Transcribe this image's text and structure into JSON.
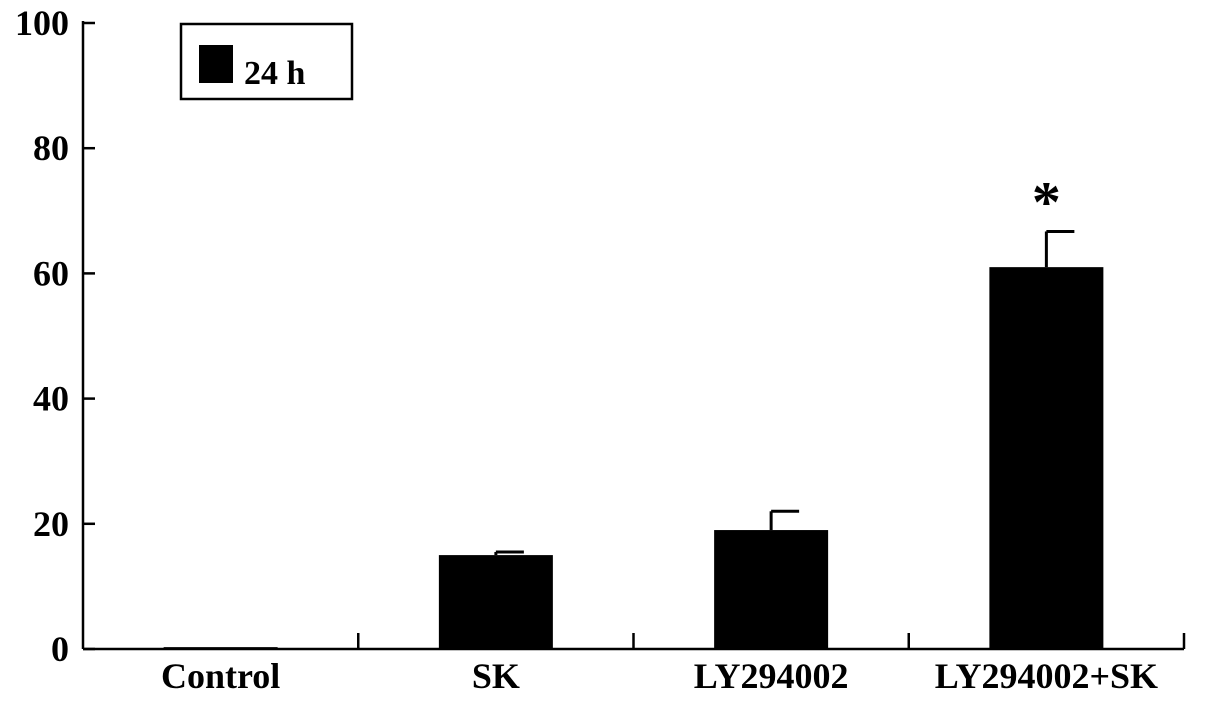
{
  "chart_data": {
    "type": "bar",
    "categories": [
      "Control",
      "SK",
      "LY294002",
      "LY294002+SK"
    ],
    "series": [
      {
        "name": "24 h",
        "values": [
          0.3,
          15,
          19,
          61
        ],
        "errors": [
          0,
          0.5,
          3,
          5.7
        ]
      }
    ],
    "yticks": [
      "0",
      "20",
      "40",
      "60",
      "80",
      "100"
    ],
    "ylim": [
      0,
      100
    ],
    "annotations": [
      {
        "category": "LY294002+SK",
        "text": "*"
      }
    ],
    "legend": {
      "position": "top-left",
      "label": "24 h"
    },
    "grid": false,
    "colors": {
      "bar": "#000000",
      "axis": "#000000",
      "background": "#ffffff"
    }
  }
}
